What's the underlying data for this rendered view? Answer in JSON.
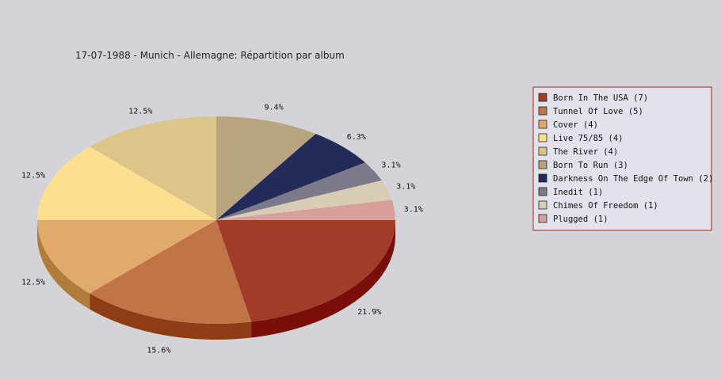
{
  "chart_data": {
    "type": "pie",
    "title": "17-07-1988 - Munich - Allemagne:  Répartition par album",
    "legend_position": "right",
    "slices": [
      {
        "label": "Born In The USA",
        "count": 7,
        "legend": "Born In The USA (7)",
        "percent_label": "21.9%",
        "color": "#a03c28",
        "side": "#7a0e08"
      },
      {
        "label": "Tunnel Of Love",
        "count": 5,
        "legend": "Tunnel Of Love (5)",
        "percent_label": "15.6%",
        "color": "#c07448",
        "side": "#8e3c14"
      },
      {
        "label": "Cover",
        "count": 4,
        "legend": "Cover (4)",
        "percent_label": "12.5%",
        "color": "#e0aa6c",
        "side": "#b07c3c"
      },
      {
        "label": "Live 75/85",
        "count": 4,
        "legend": "Live 75/85 (4)",
        "percent_label": "12.5%",
        "color": "#fedf90",
        "side": "#cca85c"
      },
      {
        "label": "The River",
        "count": 4,
        "legend": "The River (4)",
        "percent_label": "12.5%",
        "color": "#dcc588",
        "side": "#a89254"
      },
      {
        "label": "Born To Run",
        "count": 3,
        "legend": "Born To Run (3)",
        "percent_label": "9.4%",
        "color": "#b8a47e",
        "side": "#86744e"
      },
      {
        "label": "Darkness On The Edge Of Town",
        "count": 2,
        "legend": "Darkness On The Edge Of Town (2)",
        "percent_label": "6.3%",
        "color": "#232b58",
        "side": "#101634"
      },
      {
        "label": "Inedit",
        "count": 1,
        "legend": "Inedit (1)",
        "percent_label": "3.1%",
        "color": "#7c7a8a",
        "side": "#54525e"
      },
      {
        "label": "Chimes Of Freedom",
        "count": 1,
        "legend": "Chimes Of Freedom (1)",
        "percent_label": "3.1%",
        "color": "#d8ccb4",
        "side": "#a89c84"
      },
      {
        "label": "Plugged",
        "count": 1,
        "legend": "Plugged (1)",
        "percent_label": "3.1%",
        "color": "#d8a09c",
        "side": "#a8706c"
      }
    ]
  }
}
